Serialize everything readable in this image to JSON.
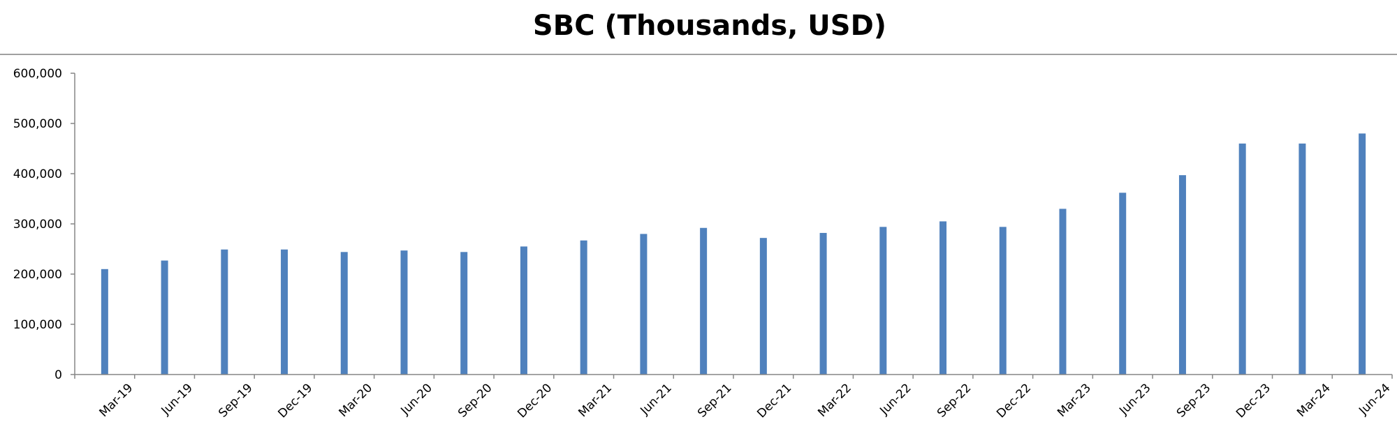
{
  "chart_data": {
    "type": "bar",
    "title": "SBC (Thousands, USD)",
    "xlabel": "",
    "ylabel": "",
    "ylim": [
      0,
      600000
    ],
    "yticks": [
      0,
      100000,
      200000,
      300000,
      400000,
      500000,
      600000
    ],
    "ytick_labels": [
      "0",
      "100,000",
      "200,000",
      "300,000",
      "400,000",
      "500,000",
      "600,000"
    ],
    "grid": false,
    "legend": "none",
    "bar_color": "#4F81BD",
    "categories": [
      "Mar-19",
      "Jun-19",
      "Sep-19",
      "Dec-19",
      "Mar-20",
      "Jun-20",
      "Sep-20",
      "Dec-20",
      "Mar-21",
      "Jun-21",
      "Sep-21",
      "Dec-21",
      "Mar-22",
      "Jun-22",
      "Sep-22",
      "Dec-22",
      "Mar-23",
      "Jun-23",
      "Sep-23",
      "Dec-23",
      "Mar-24",
      "Jun-24"
    ],
    "values": [
      210000,
      227000,
      249000,
      249000,
      244000,
      247000,
      244000,
      255000,
      267000,
      280000,
      292000,
      272000,
      282000,
      294000,
      305000,
      294000,
      330000,
      362000,
      397000,
      460000,
      460000,
      480000
    ]
  }
}
